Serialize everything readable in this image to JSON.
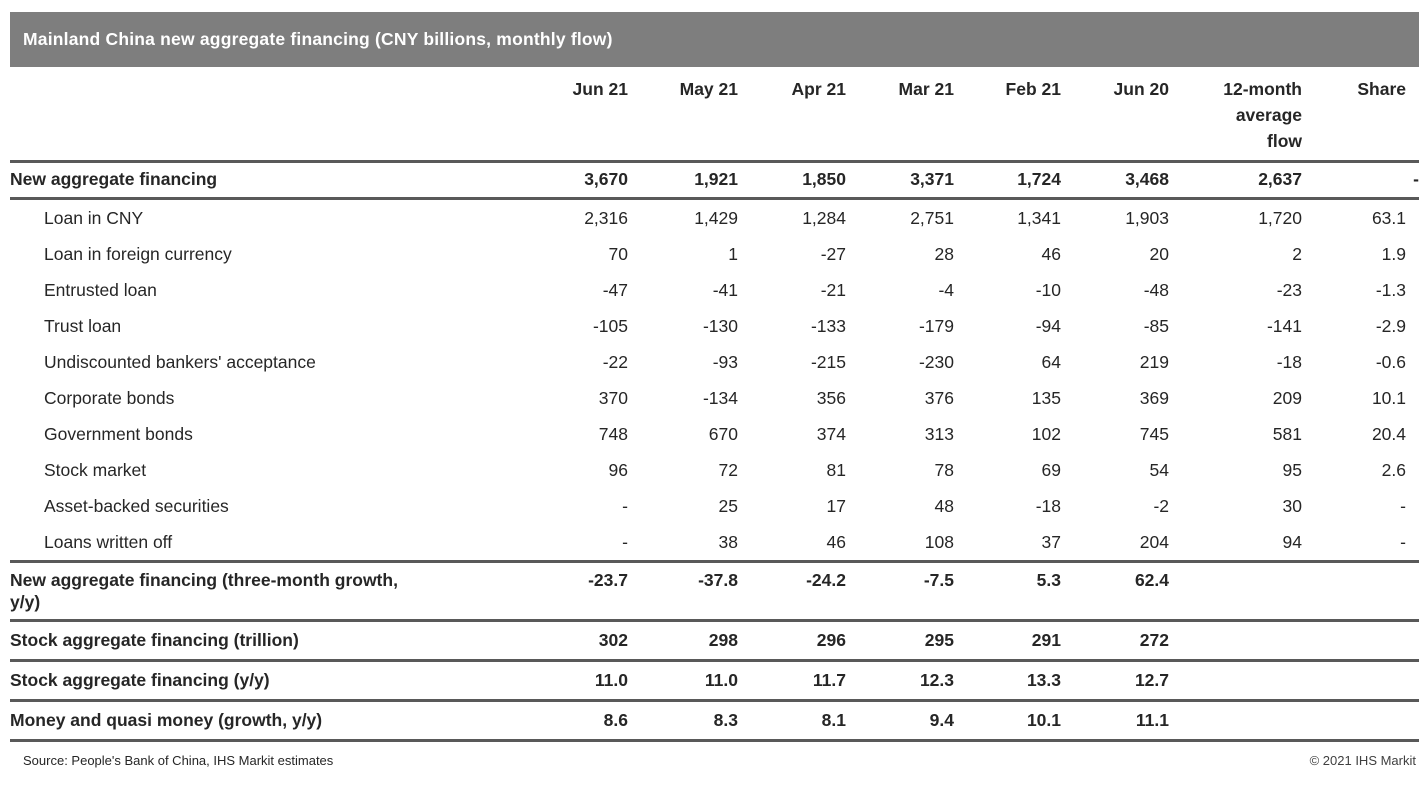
{
  "chart_data": {
    "type": "table",
    "title": "Mainland China new aggregate financing (CNY billions, monthly flow)",
    "columns": [
      "Jun 21",
      "May 21",
      "Apr 21",
      "Mar 21",
      "Feb 21",
      "Jun 20",
      "12-month average flow",
      "Share"
    ],
    "rows": [
      {
        "label": "New aggregate financing",
        "indent": false,
        "bold": true,
        "section_end": true,
        "values": [
          "3,670",
          "1,921",
          "1,850",
          "3,371",
          "1,724",
          "3,468",
          "2,637",
          "-"
        ]
      },
      {
        "label": "Loan in CNY",
        "indent": true,
        "bold": false,
        "section_end": false,
        "values": [
          "2,316",
          "1,429",
          "1,284",
          "2,751",
          "1,341",
          "1,903",
          "1,720",
          "63.1"
        ]
      },
      {
        "label": "Loan in foreign currency",
        "indent": true,
        "bold": false,
        "section_end": false,
        "values": [
          "70",
          "1",
          "-27",
          "28",
          "46",
          "20",
          "2",
          "1.9"
        ]
      },
      {
        "label": "Entrusted loan",
        "indent": true,
        "bold": false,
        "section_end": false,
        "values": [
          "-47",
          "-41",
          "-21",
          "-4",
          "-10",
          "-48",
          "-23",
          "-1.3"
        ]
      },
      {
        "label": "Trust loan",
        "indent": true,
        "bold": false,
        "section_end": false,
        "values": [
          "-105",
          "-130",
          "-133",
          "-179",
          "-94",
          "-85",
          "-141",
          "-2.9"
        ]
      },
      {
        "label": "Undiscounted bankers' acceptance",
        "indent": true,
        "bold": false,
        "section_end": false,
        "values": [
          "-22",
          "-93",
          "-215",
          "-230",
          "64",
          "219",
          "-18",
          "-0.6"
        ]
      },
      {
        "label": "Corporate bonds",
        "indent": true,
        "bold": false,
        "section_end": false,
        "values": [
          "370",
          "-134",
          "356",
          "376",
          "135",
          "369",
          "209",
          "10.1"
        ]
      },
      {
        "label": "Government bonds",
        "indent": true,
        "bold": false,
        "section_end": false,
        "values": [
          "748",
          "670",
          "374",
          "313",
          "102",
          "745",
          "581",
          "20.4"
        ]
      },
      {
        "label": "Stock market",
        "indent": true,
        "bold": false,
        "section_end": false,
        "values": [
          "96",
          "72",
          "81",
          "78",
          "69",
          "54",
          "95",
          "2.6"
        ]
      },
      {
        "label": "Asset-backed securities",
        "indent": true,
        "bold": false,
        "section_end": false,
        "values": [
          "-",
          "25",
          "17",
          "48",
          "-18",
          "-2",
          "30",
          "-"
        ]
      },
      {
        "label": "Loans written off",
        "indent": true,
        "bold": false,
        "section_end": true,
        "values": [
          "-",
          "38",
          "46",
          "108",
          "37",
          "204",
          "94",
          "-"
        ]
      },
      {
        "label": "New aggregate financing (three-month growth, y/y)",
        "indent": false,
        "bold": true,
        "section_end": true,
        "values": [
          "-23.7",
          "-37.8",
          "-24.2",
          "-7.5",
          "5.3",
          "62.4",
          "",
          ""
        ]
      },
      {
        "label": "Stock aggregate financing (trillion)",
        "indent": false,
        "bold": true,
        "section_end": true,
        "values": [
          "302",
          "298",
          "296",
          "295",
          "291",
          "272",
          "",
          ""
        ]
      },
      {
        "label": "Stock aggregate financing (y/y)",
        "indent": false,
        "bold": true,
        "section_end": true,
        "values": [
          "11.0",
          "11.0",
          "11.7",
          "12.3",
          "13.3",
          "12.7",
          "",
          ""
        ]
      },
      {
        "label": "Money and quasi money (growth, y/y)",
        "indent": false,
        "bold": true,
        "section_end": true,
        "values": [
          "8.6",
          "8.3",
          "8.1",
          "9.4",
          "10.1",
          "11.1",
          "",
          ""
        ]
      }
    ],
    "layout_hints": {
      "value_alignment": "right",
      "header_bold": true,
      "grid": "horizontal-rules-only"
    }
  },
  "footer": {
    "source": "Source: People's Bank of China, IHS Markit estimates",
    "copyright": "© 2021 IHS Markit"
  },
  "colors": {
    "title_bar_bg": "#7e7e7e",
    "title_text": "#ffffff",
    "rule": "#595959",
    "text": "#262626"
  }
}
